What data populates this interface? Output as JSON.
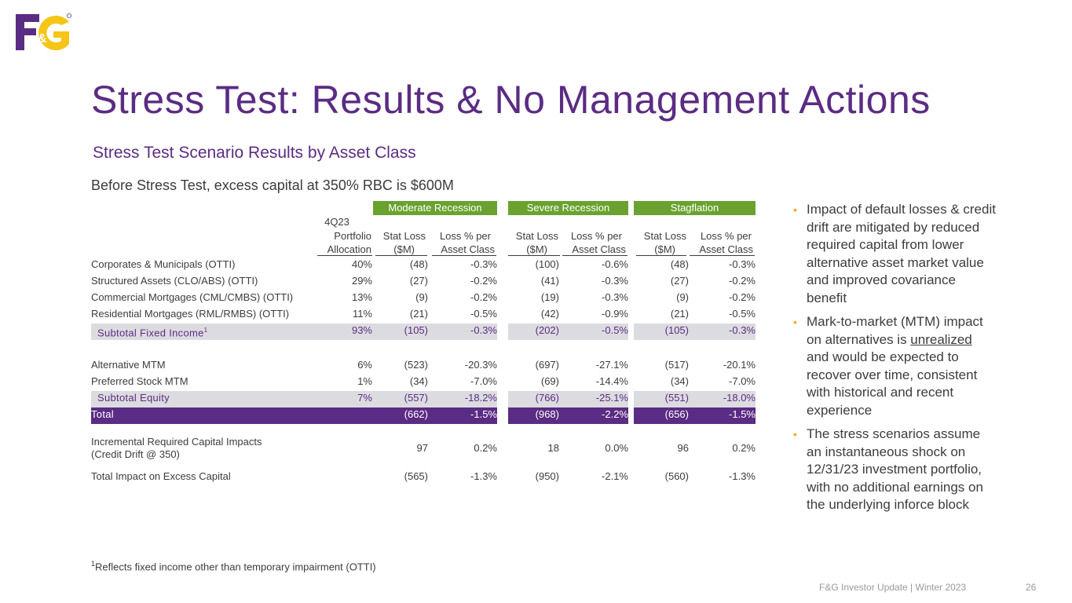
{
  "logo": {
    "alt": "F&G logo",
    "colors": {
      "purple": "#5b2c83",
      "yellow": "#f5c518"
    }
  },
  "title": "Stress Test: Results & No Management Actions",
  "subtitle": "Stress Test Scenario Results by Asset Class",
  "caption": "Before Stress Test, excess capital at 350% RBC is $600M",
  "table": {
    "groups": [
      "Moderate Recession",
      "Severe Recession",
      "Stagflation"
    ],
    "headers": {
      "allocation": [
        "4Q23",
        "Portfolio",
        "Allocation"
      ],
      "stat_loss": [
        "Stat Loss",
        "($M)"
      ],
      "loss_pct": [
        "Loss % per",
        "Asset Class"
      ]
    },
    "rows": [
      {
        "label": "Corporates & Municipals (OTTI)",
        "alloc": "40%",
        "v": [
          "(48)",
          "-0.3%",
          "(100)",
          "-0.6%",
          "(48)",
          "-0.3%"
        ]
      },
      {
        "label": "Structured Assets (CLO/ABS) (OTTI)",
        "alloc": "29%",
        "v": [
          "(27)",
          "-0.2%",
          "(41)",
          "-0.3%",
          "(27)",
          "-0.2%"
        ]
      },
      {
        "label": "Commercial Mortgages (CML/CMBS) (OTTI)",
        "alloc": "13%",
        "v": [
          "(9)",
          "-0.2%",
          "(19)",
          "-0.3%",
          "(9)",
          "-0.2%"
        ]
      },
      {
        "label": "Residential Mortgages (RML/RMBS) (OTTI)",
        "alloc": "11%",
        "v": [
          "(21)",
          "-0.5%",
          "(42)",
          "-0.9%",
          "(21)",
          "-0.5%"
        ]
      },
      {
        "label": "Subtotal Fixed Income",
        "label_sup": "1",
        "alloc": "93%",
        "v": [
          "(105)",
          "-0.3%",
          "(202)",
          "-0.5%",
          "(105)",
          "-0.3%"
        ]
      },
      {
        "label": "Alternative MTM",
        "alloc": "6%",
        "v": [
          "(523)",
          "-20.3%",
          "(697)",
          "-27.1%",
          "(517)",
          "-20.1%"
        ]
      },
      {
        "label": "Preferred Stock MTM",
        "alloc": "1%",
        "v": [
          "(34)",
          "-7.0%",
          "(69)",
          "-14.4%",
          "(34)",
          "-7.0%"
        ]
      },
      {
        "label": "Subtotal Equity",
        "alloc": "7%",
        "v": [
          "(557)",
          "-18.2%",
          "(766)",
          "-25.1%",
          "(551)",
          "-18.0%"
        ]
      },
      {
        "label": "Total",
        "alloc": "",
        "v": [
          "(662)",
          "-1.5%",
          "(968)",
          "-2.2%",
          "(656)",
          "-1.5%"
        ]
      },
      {
        "label": "Incremental Required Capital Impacts",
        "label2": "(Credit Drift @ 350)",
        "alloc": "",
        "v": [
          "97",
          "0.2%",
          "18",
          "0.0%",
          "96",
          "0.2%"
        ]
      },
      {
        "label": "Total Impact on Excess Capital",
        "alloc": "",
        "v": [
          "(565)",
          "-1.3%",
          "(950)",
          "-2.1%",
          "(560)",
          "-1.3%"
        ]
      }
    ]
  },
  "bullets": [
    {
      "text": "Impact of default losses & credit drift are mitigated by reduced required capital from lower alternative asset market value and improved covariance benefit"
    },
    {
      "pre": "Mark-to-market (MTM) impact on alternatives is ",
      "em": "unrealized",
      "post": " and would be expected to recover over time, consistent with historical and recent experience"
    },
    {
      "text": "The stress scenarios assume an instantaneous shock on 12/31/23 investment portfolio, with no additional earnings on the underlying inforce block"
    }
  ],
  "footnote": {
    "sup": "1",
    "text": "Reflects fixed income other than temporary impairment (OTTI)"
  },
  "footer": "F&G Investor Update | Winter 2023",
  "page_number": "26",
  "colors": {
    "purple": "#5b2c83",
    "green": "#6aa22f",
    "subtotal_bg": "#dcdce0",
    "bullet": "#f5a623",
    "text": "#3c3c3c"
  }
}
